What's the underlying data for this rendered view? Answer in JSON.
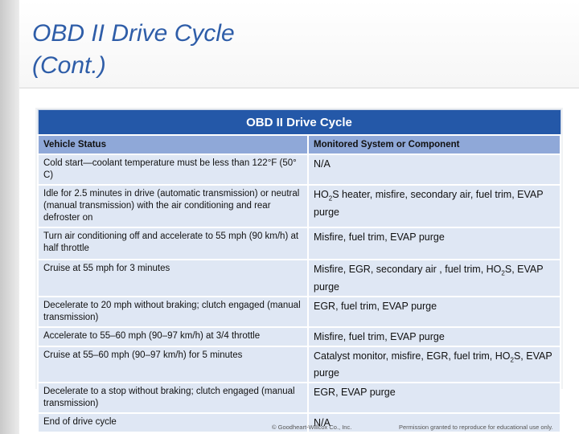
{
  "slide": {
    "title_line1": "OBD II Drive Cycle",
    "title_line2": "(Cont.)"
  },
  "table": {
    "caption": "OBD II Drive Cycle",
    "headers": [
      "Vehicle Status",
      "Monitored System or Component"
    ],
    "rows": [
      {
        "status": "Cold start—coolant temperature must be less than 122°F (50° C)",
        "component": "N/A"
      },
      {
        "status": "Idle for 2.5 minutes in drive (automatic transmission) or neutral (manual transmission) with the air conditioning and rear defroster on",
        "component": "HO2S heater, misfire, secondary air, fuel trim, EVAP purge"
      },
      {
        "status": "Turn air conditioning off and accelerate to 55 mph (90 km/h) at half throttle",
        "component": "Misfire, fuel trim, EVAP purge"
      },
      {
        "status": "Cruise at 55 mph for 3 minutes",
        "component": "Misfire, EGR, secondary air , fuel trim, HO2S, EVAP purge"
      },
      {
        "status": "Decelerate to 20 mph without braking; clutch engaged (manual transmission)",
        "component": "EGR, fuel trim, EVAP purge"
      },
      {
        "status": "Accelerate to 55–60 mph (90–97 km/h) at 3/4 throttle",
        "component": "Misfire, fuel trim, EVAP purge"
      },
      {
        "status": "Cruise at 55–60 mph (90–97 km/h) for 5 minutes",
        "component": "Catalyst monitor, misfire, EGR, fuel trim, HO2S, EVAP purge"
      },
      {
        "status": "Decelerate to a stop without braking; clutch engaged (manual transmission)",
        "component": "EGR, EVAP purge"
      },
      {
        "status": "End of drive cycle",
        "component": "N/A"
      }
    ]
  },
  "footer": {
    "copyright": "© Goodheart-Willcox Co., Inc.",
    "permission": "Permission granted to reproduce for educational use only."
  }
}
